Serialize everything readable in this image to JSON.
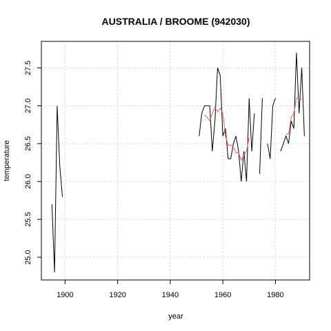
{
  "chart_data": {
    "type": "line",
    "title": "AUSTRALIA / BROOME (942030)",
    "xlabel": "year",
    "ylabel": "temperature",
    "xlim": [
      1891,
      1993
    ],
    "ylim": [
      24.7,
      27.85
    ],
    "xticks": [
      1900,
      1920,
      1940,
      1960,
      1980
    ],
    "yticks": [
      25.0,
      25.5,
      26.0,
      26.5,
      27.0,
      27.5
    ],
    "grid": true,
    "series": [
      {
        "color": "#000000",
        "segments": [
          [
            [
              1895,
              25.7
            ],
            [
              1896,
              24.8
            ],
            [
              1897,
              27.0
            ],
            [
              1898,
              26.2
            ],
            [
              1899,
              25.8
            ]
          ],
          [
            [
              1951,
              26.6
            ],
            [
              1952,
              26.9
            ],
            [
              1953,
              27.0
            ],
            [
              1954,
              27.0
            ],
            [
              1955,
              27.0
            ],
            [
              1956,
              26.4
            ],
            [
              1957,
              26.8
            ],
            [
              1958,
              27.5
            ],
            [
              1959,
              27.4
            ],
            [
              1960,
              26.6
            ],
            [
              1961,
              26.7
            ],
            [
              1962,
              26.3
            ],
            [
              1963,
              26.3
            ],
            [
              1964,
              26.5
            ],
            [
              1965,
              26.6
            ],
            [
              1966,
              26.4
            ],
            [
              1967,
              26.0
            ],
            [
              1968,
              26.4
            ],
            [
              1969,
              26.0
            ],
            [
              1970,
              27.1
            ],
            [
              1971,
              26.4
            ],
            [
              1972,
              26.9
            ]
          ],
          [
            [
              1974,
              26.1
            ],
            [
              1975,
              27.1
            ]
          ],
          [
            [
              1977,
              26.5
            ],
            [
              1978,
              26.3
            ],
            [
              1979,
              27.0
            ],
            [
              1980,
              27.1
            ]
          ],
          [
            [
              1982,
              26.4
            ],
            [
              1983,
              26.5
            ],
            [
              1984,
              26.6
            ],
            [
              1985,
              26.5
            ],
            [
              1986,
              26.8
            ],
            [
              1987,
              26.7
            ],
            [
              1988,
              27.7
            ],
            [
              1989,
              26.9
            ],
            [
              1990,
              27.5
            ],
            [
              1991,
              26.6
            ]
          ]
        ]
      },
      {
        "color": "#e8635a",
        "segments": [
          [
            [
              1953,
              26.88
            ],
            [
              1954,
              26.85
            ],
            [
              1955,
              26.8
            ],
            [
              1956,
              26.9
            ],
            [
              1957,
              26.98
            ],
            [
              1958,
              26.92
            ],
            [
              1959,
              26.97
            ],
            [
              1960,
              26.9
            ],
            [
              1961,
              26.6
            ],
            [
              1962,
              26.48
            ],
            [
              1963,
              26.48
            ],
            [
              1964,
              26.45
            ],
            [
              1965,
              26.38
            ],
            [
              1966,
              26.38
            ],
            [
              1967,
              26.28
            ],
            [
              1968,
              26.35
            ],
            [
              1969,
              26.4
            ],
            [
              1970,
              26.58
            ]
          ],
          [
            [
              1984,
              26.62
            ],
            [
              1985,
              26.63
            ],
            [
              1986,
              26.85
            ],
            [
              1987,
              26.9
            ],
            [
              1988,
              27.1
            ],
            [
              1989,
              27.12
            ],
            [
              1990,
              27.08
            ]
          ]
        ]
      }
    ]
  }
}
